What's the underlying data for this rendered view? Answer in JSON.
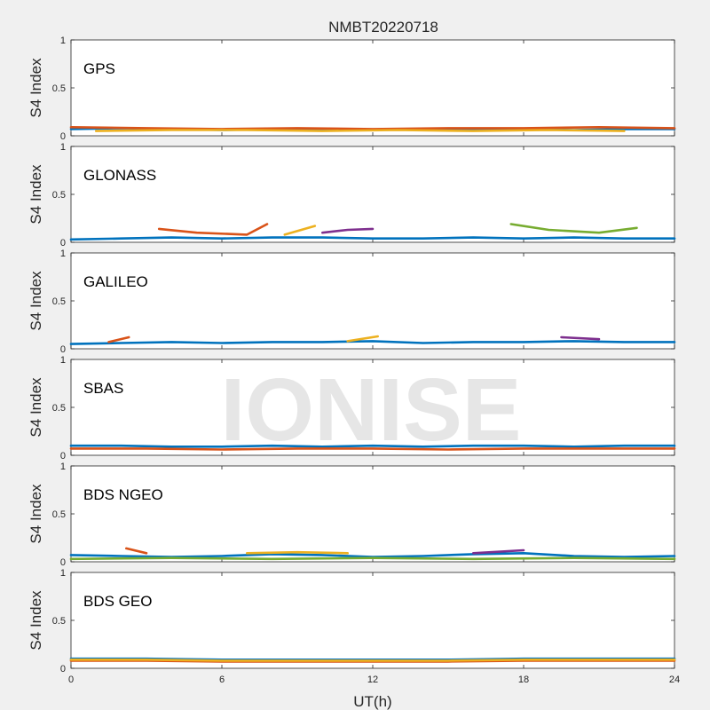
{
  "chart_data": {
    "type": "line",
    "title": "NMBT20220718",
    "xlabel": "UT(h)",
    "ylabel": "S4 Index",
    "xlim": [
      0,
      24
    ],
    "ylim": [
      0,
      1
    ],
    "xticks": [
      "0",
      "6",
      "12",
      "18",
      "24"
    ],
    "yticks": [
      "0",
      "0.5",
      "1"
    ],
    "watermark": "IONISE",
    "colors": [
      "#0072bd",
      "#d95319",
      "#edb120",
      "#7e2f8e",
      "#77ac30",
      "#4dbeee",
      "#a2142f"
    ],
    "panels": [
      {
        "label": "GPS",
        "series": [
          {
            "x": [
              0,
              2,
              4,
              6,
              8,
              10,
              12,
              14,
              16,
              18,
              20,
              22,
              24
            ],
            "y": [
              0.07,
              0.08,
              0.07,
              0.06,
              0.07,
              0.07,
              0.06,
              0.07,
              0.06,
              0.07,
              0.06,
              0.07,
              0.07
            ]
          },
          {
            "x": [
              0,
              3,
              6,
              9,
              12,
              15,
              18,
              21,
              24
            ],
            "y": [
              0.09,
              0.08,
              0.07,
              0.08,
              0.07,
              0.08,
              0.08,
              0.09,
              0.08
            ]
          },
          {
            "x": [
              1,
              4,
              7,
              10,
              13,
              16,
              19,
              22
            ],
            "y": [
              0.05,
              0.06,
              0.06,
              0.05,
              0.06,
              0.05,
              0.06,
              0.05
            ]
          }
        ]
      },
      {
        "label": "GLONASS",
        "series": [
          {
            "x": [
              0,
              2,
              4,
              6,
              8,
              10,
              12,
              14,
              16,
              18,
              20,
              22,
              24
            ],
            "y": [
              0.03,
              0.04,
              0.05,
              0.04,
              0.05,
              0.05,
              0.04,
              0.04,
              0.05,
              0.04,
              0.05,
              0.04,
              0.04
            ]
          },
          {
            "x": [
              3.5,
              5,
              7,
              7.8
            ],
            "y": [
              0.14,
              0.1,
              0.08,
              0.19
            ]
          },
          {
            "x": [
              8.5,
              9.7
            ],
            "y": [
              0.08,
              0.17
            ]
          },
          {
            "x": [
              10,
              11,
              12
            ],
            "y": [
              0.1,
              0.13,
              0.14
            ]
          },
          {
            "x": [
              17.5,
              19,
              21,
              22.5
            ],
            "y": [
              0.19,
              0.13,
              0.1,
              0.15
            ]
          }
        ]
      },
      {
        "label": "GALILEO",
        "series": [
          {
            "x": [
              0,
              2,
              4,
              6,
              8,
              10,
              12,
              14,
              16,
              18,
              20,
              22,
              24
            ],
            "y": [
              0.05,
              0.06,
              0.07,
              0.06,
              0.07,
              0.07,
              0.08,
              0.06,
              0.07,
              0.07,
              0.08,
              0.07,
              0.07
            ]
          },
          {
            "x": [
              1.5,
              2.3
            ],
            "y": [
              0.07,
              0.12
            ]
          },
          {
            "x": [
              11,
              12.2
            ],
            "y": [
              0.08,
              0.13
            ]
          },
          {
            "x": [
              19.5,
              21
            ],
            "y": [
              0.12,
              0.1
            ]
          }
        ]
      },
      {
        "label": "SBAS",
        "series": [
          {
            "x": [
              0,
              2,
              4,
              6,
              8,
              10,
              12,
              14,
              16,
              18,
              20,
              22,
              24
            ],
            "y": [
              0.1,
              0.1,
              0.09,
              0.09,
              0.1,
              0.09,
              0.1,
              0.09,
              0.1,
              0.1,
              0.09,
              0.1,
              0.1
            ]
          },
          {
            "x": [
              0,
              3,
              6,
              9,
              12,
              15,
              18,
              21,
              24
            ],
            "y": [
              0.07,
              0.07,
              0.06,
              0.07,
              0.07,
              0.06,
              0.07,
              0.07,
              0.07
            ]
          }
        ]
      },
      {
        "label": "BDS NGEO",
        "series": [
          {
            "x": [
              0,
              2,
              4,
              6,
              8,
              10,
              12,
              14,
              16,
              18,
              20,
              22,
              24
            ],
            "y": [
              0.07,
              0.06,
              0.05,
              0.06,
              0.08,
              0.07,
              0.05,
              0.06,
              0.08,
              0.09,
              0.06,
              0.05,
              0.06
            ]
          },
          {
            "x": [
              2.2,
              3
            ],
            "y": [
              0.14,
              0.09
            ]
          },
          {
            "x": [
              7,
              9,
              11
            ],
            "y": [
              0.09,
              0.1,
              0.09
            ]
          },
          {
            "x": [
              16,
              18
            ],
            "y": [
              0.09,
              0.12
            ]
          },
          {
            "x": [
              0,
              4,
              8,
              12,
              16,
              20,
              24
            ],
            "y": [
              0.03,
              0.04,
              0.03,
              0.04,
              0.03,
              0.04,
              0.03
            ]
          }
        ]
      },
      {
        "label": "BDS GEO",
        "series": [
          {
            "x": [
              0,
              3,
              6,
              9,
              12,
              15,
              18,
              21,
              24
            ],
            "y": [
              0.1,
              0.1,
              0.09,
              0.09,
              0.09,
              0.09,
              0.1,
              0.1,
              0.1
            ]
          },
          {
            "x": [
              0,
              3,
              6,
              9,
              12,
              15,
              18,
              21,
              24
            ],
            "y": [
              0.08,
              0.08,
              0.07,
              0.07,
              0.07,
              0.07,
              0.08,
              0.08,
              0.08
            ]
          },
          {
            "x": [
              0,
              3,
              6,
              9,
              12,
              15,
              18,
              21,
              24
            ],
            "y": [
              0.09,
              0.09,
              0.08,
              0.08,
              0.08,
              0.08,
              0.09,
              0.09,
              0.09
            ]
          }
        ]
      }
    ]
  }
}
